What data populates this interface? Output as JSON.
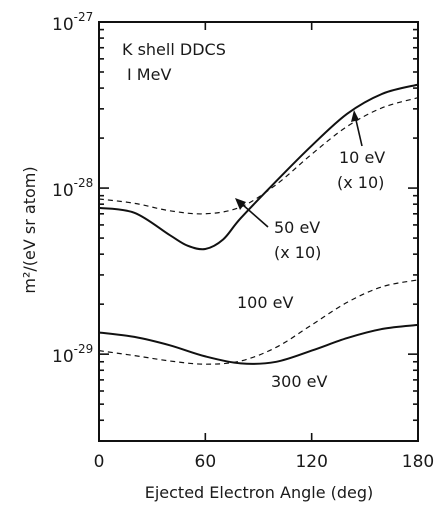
{
  "chart_data": {
    "type": "line",
    "title": "",
    "annotations": [
      "K shell DDCS",
      "I MeV"
    ],
    "xlabel": "Ejected Electron Angle (deg)",
    "ylabel": "m²/(eV sr atom)",
    "xlim": [
      0,
      180
    ],
    "ylim": [
      3e-30,
      1e-27
    ],
    "yscale": "log",
    "x_ticks": [
      0,
      60,
      120,
      180
    ],
    "x_tick_labels": [
      "0",
      "60",
      "120",
      "180"
    ],
    "y_ticks": [
      1e-29,
      1e-28,
      1e-27
    ],
    "y_tick_labels": [
      {
        "base": "10",
        "exp": "-29"
      },
      {
        "base": "10",
        "exp": "-28"
      },
      {
        "base": "10",
        "exp": "-27"
      }
    ],
    "grid": false,
    "series": [
      {
        "name": "10 eV (x 10)",
        "label_lines": [
          "10 eV",
          "(x 10)"
        ],
        "style": "dashed",
        "x": [
          0,
          20,
          40,
          60,
          80,
          100,
          120,
          140,
          160,
          180
        ],
        "y": [
          8.6e-29,
          8.1e-29,
          7.3e-29,
          7e-29,
          7.7e-29,
          1.05e-28,
          1.6e-28,
          2.35e-28,
          3.05e-28,
          3.5e-28
        ]
      },
      {
        "name": "50 eV (x 10)",
        "label_lines": [
          "50 eV",
          "(x 10)"
        ],
        "style": "solid",
        "x": [
          0,
          20,
          40,
          50,
          60,
          70,
          80,
          100,
          120,
          140,
          160,
          180
        ],
        "y": [
          7.6e-29,
          7.1e-29,
          5.2e-29,
          4.5e-29,
          4.3e-29,
          4.9e-29,
          6.6e-29,
          1.1e-28,
          1.8e-28,
          2.8e-28,
          3.7e-28,
          4.2e-28
        ]
      },
      {
        "name": "100 eV",
        "label_lines": [
          "100 eV"
        ],
        "style": "dashed",
        "x": [
          0,
          20,
          40,
          60,
          80,
          100,
          120,
          140,
          160,
          180
        ],
        "y": [
          1.05e-29,
          9.8e-30,
          9.1e-30,
          8.7e-30,
          9.1e-30,
          1.1e-29,
          1.5e-29,
          2.05e-29,
          2.55e-29,
          2.8e-29
        ]
      },
      {
        "name": "300 eV",
        "label_lines": [
          "300 eV"
        ],
        "style": "solid",
        "x": [
          0,
          20,
          40,
          60,
          80,
          100,
          120,
          140,
          160,
          180
        ],
        "y": [
          1.35e-29,
          1.27e-29,
          1.13e-29,
          9.7e-30,
          8.8e-30,
          9e-30,
          1.05e-29,
          1.25e-29,
          1.42e-29,
          1.5e-29
        ]
      }
    ]
  }
}
